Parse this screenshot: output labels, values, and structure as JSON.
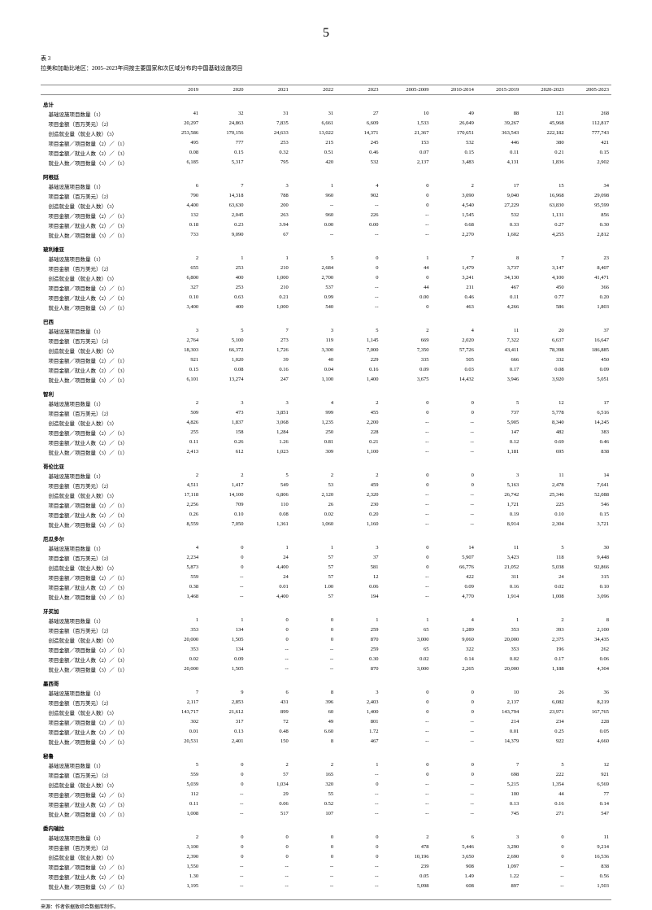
{
  "page_number": "5",
  "table_label": "表 3",
  "table_title": "拉美和加勒比地区：2005–2023年间按主要国家和次区域分布的中国基础设施项目",
  "columns": [
    "",
    "2019",
    "2020",
    "2021",
    "2022",
    "2023",
    "2005-2009",
    "2010-2014",
    "2015-2019",
    "2020-2023",
    "2005-2023"
  ],
  "sections": [
    {
      "name": "总计",
      "rows": [
        {
          "label": "基础设施项目数量（1）",
          "v": [
            "41",
            "32",
            "31",
            "31",
            "27",
            "10",
            "49",
            "88",
            "121",
            "268"
          ]
        },
        {
          "label": "项目金额（百万美元）（2）",
          "v": [
            "20,297",
            "24,863",
            "7,835",
            "6,661",
            "6,609",
            "1,533",
            "26,049",
            "39,267",
            "45,968",
            "112,817"
          ]
        },
        {
          "label": "创造就业量（就业人数）（3）",
          "v": [
            "253,586",
            "170,156",
            "24,633",
            "13,022",
            "14,371",
            "21,367",
            "170,651",
            "363,543",
            "222,182",
            "777,743"
          ]
        },
        {
          "label": "项目金额／项目数量（2）／（1）",
          "v": [
            "495",
            "777",
            "253",
            "215",
            "245",
            "153",
            "532",
            "446",
            "380",
            "421"
          ]
        },
        {
          "label": "项目金额／就业人数（2）／（3）",
          "v": [
            "0.08",
            "0.15",
            "0.32",
            "0.51",
            "0.46",
            "0.07",
            "0.15",
            "0.11",
            "0.21",
            "0.15"
          ]
        },
        {
          "label": "就业人数／项目数量（3）／（1）",
          "v": [
            "6,185",
            "5,317",
            "795",
            "420",
            "532",
            "2,137",
            "3,483",
            "4,131",
            "1,836",
            "2,902"
          ]
        }
      ]
    },
    {
      "name": "阿根廷",
      "rows": [
        {
          "label": "基础设施项目数量（1）",
          "v": [
            "6",
            "7",
            "3",
            "1",
            "4",
            "0",
            "2",
            "17",
            "15",
            "34"
          ]
        },
        {
          "label": "项目金额（百万美元）（2）",
          "v": [
            "790",
            "14,318",
            "788",
            "960",
            "902",
            "0",
            "3,090",
            "9,040",
            "16,968",
            "29,098"
          ]
        },
        {
          "label": "创造就业量（就业人数）（3）",
          "v": [
            "4,400",
            "63,630",
            "200",
            "--",
            "--",
            "0",
            "4,540",
            "27,229",
            "63,830",
            "95,599"
          ]
        },
        {
          "label": "项目金额／项目数量（2）／（1）",
          "v": [
            "132",
            "2,045",
            "263",
            "960",
            "226",
            "--",
            "1,545",
            "532",
            "1,131",
            "856"
          ]
        },
        {
          "label": "项目金额／就业人数（2）／（3）",
          "v": [
            "0.18",
            "0.23",
            "3.94",
            "0.00",
            "0.00",
            "--",
            "0.68",
            "0.33",
            "0.27",
            "0.30"
          ]
        },
        {
          "label": "就业人数／项目数量（3）／（1）",
          "v": [
            "733",
            "9,090",
            "67",
            "--",
            "--",
            "--",
            "2,270",
            "1,602",
            "4,255",
            "2,812"
          ]
        }
      ]
    },
    {
      "name": "玻利维亚",
      "rows": [
        {
          "label": "基础设施项目数量（1）",
          "v": [
            "2",
            "1",
            "1",
            "5",
            "0",
            "1",
            "7",
            "8",
            "7",
            "23"
          ]
        },
        {
          "label": "项目金额（百万美元）（2）",
          "v": [
            "655",
            "253",
            "210",
            "2,684",
            "0",
            "44",
            "1,479",
            "3,737",
            "3,147",
            "8,407"
          ]
        },
        {
          "label": "创造就业量（就业人数）（3）",
          "v": [
            "6,800",
            "400",
            "1,000",
            "2,700",
            "0",
            "0",
            "3,241",
            "34,130",
            "4,100",
            "41,471"
          ]
        },
        {
          "label": "项目金额／项目数量（2）／（1）",
          "v": [
            "327",
            "253",
            "210",
            "537",
            "--",
            "44",
            "211",
            "467",
            "450",
            "366"
          ]
        },
        {
          "label": "项目金额／就业人数（2）／（3）",
          "v": [
            "0.10",
            "0.63",
            "0.21",
            "0.99",
            "--",
            "0.00",
            "0.46",
            "0.11",
            "0.77",
            "0.20"
          ]
        },
        {
          "label": "就业人数／项目数量（3）／（1）",
          "v": [
            "3,400",
            "400",
            "1,000",
            "540",
            "--",
            "0",
            "463",
            "4,266",
            "586",
            "1,803"
          ]
        }
      ]
    },
    {
      "name": "巴西",
      "rows": [
        {
          "label": "基础设施项目数量（1）",
          "v": [
            "3",
            "5",
            "7",
            "3",
            "5",
            "2",
            "4",
            "11",
            "20",
            "37"
          ]
        },
        {
          "label": "项目金额（百万美元）（2）",
          "v": [
            "2,764",
            "5,100",
            "273",
            "119",
            "1,145",
            "669",
            "2,020",
            "7,322",
            "6,637",
            "16,647"
          ]
        },
        {
          "label": "创造就业量（就业人数）（3）",
          "v": [
            "18,303",
            "66,372",
            "1,726",
            "3,300",
            "7,000",
            "7,350",
            "57,726",
            "43,411",
            "78,398",
            "186,885"
          ]
        },
        {
          "label": "项目金额／项目数量（2）／（1）",
          "v": [
            "921",
            "1,020",
            "39",
            "40",
            "229",
            "335",
            "505",
            "666",
            "332",
            "450"
          ]
        },
        {
          "label": "项目金额／就业人数（2）／（3）",
          "v": [
            "0.15",
            "0.08",
            "0.16",
            "0.04",
            "0.16",
            "0.09",
            "0.03",
            "0.17",
            "0.08",
            "0.09"
          ]
        },
        {
          "label": "就业人数／项目数量（3）／（1）",
          "v": [
            "6,101",
            "13,274",
            "247",
            "1,100",
            "1,400",
            "3,675",
            "14,432",
            "3,946",
            "3,920",
            "5,051"
          ]
        }
      ]
    },
    {
      "name": "智利",
      "rows": [
        {
          "label": "基础设施项目数量（1）",
          "v": [
            "2",
            "3",
            "3",
            "4",
            "2",
            "0",
            "0",
            "5",
            "12",
            "17"
          ]
        },
        {
          "label": "项目金额（百万美元）（2）",
          "v": [
            "509",
            "473",
            "3,851",
            "999",
            "455",
            "0",
            "0",
            "737",
            "5,778",
            "6,516"
          ]
        },
        {
          "label": "创造就业量（就业人数）（3）",
          "v": [
            "4,826",
            "1,837",
            "3,068",
            "1,235",
            "2,200",
            "--",
            "--",
            "5,905",
            "8,340",
            "14,245"
          ]
        },
        {
          "label": "项目金额／项目数量（2）／（1）",
          "v": [
            "255",
            "158",
            "1,284",
            "250",
            "228",
            "--",
            "--",
            "147",
            "482",
            "383"
          ]
        },
        {
          "label": "项目金额／就业人数（2）／（3）",
          "v": [
            "0.11",
            "0.26",
            "1.26",
            "0.81",
            "0.21",
            "--",
            "--",
            "0.12",
            "0.69",
            "0.46"
          ]
        },
        {
          "label": "就业人数／项目数量（3）／（1）",
          "v": [
            "2,413",
            "612",
            "1,023",
            "309",
            "1,100",
            "--",
            "--",
            "1,181",
            "695",
            "838"
          ]
        }
      ]
    },
    {
      "name": "哥伦比亚",
      "rows": [
        {
          "label": "基础设施项目数量（1）",
          "v": [
            "2",
            "2",
            "5",
            "2",
            "2",
            "0",
            "0",
            "3",
            "11",
            "14"
          ]
        },
        {
          "label": "项目金额（百万美元）（2）",
          "v": [
            "4,511",
            "1,417",
            "549",
            "53",
            "459",
            "0",
            "0",
            "5,163",
            "2,478",
            "7,641"
          ]
        },
        {
          "label": "创造就业量（就业人数）（3）",
          "v": [
            "17,118",
            "14,100",
            "6,806",
            "2,120",
            "2,320",
            "--",
            "--",
            "26,742",
            "25,346",
            "52,088"
          ]
        },
        {
          "label": "项目金额／项目数量（2）／（1）",
          "v": [
            "2,256",
            "709",
            "110",
            "26",
            "230",
            "--",
            "--",
            "1,721",
            "225",
            "546"
          ]
        },
        {
          "label": "项目金额／就业人数（2）／（3）",
          "v": [
            "0.26",
            "0.10",
            "0.08",
            "0.02",
            "0.20",
            "--",
            "--",
            "0.19",
            "0.10",
            "0.15"
          ]
        },
        {
          "label": "就业人数／项目数量（3）／（1）",
          "v": [
            "8,559",
            "7,050",
            "1,361",
            "1,060",
            "1,160",
            "--",
            "--",
            "8,914",
            "2,304",
            "3,721"
          ]
        }
      ]
    },
    {
      "name": "厄瓜多尔",
      "rows": [
        {
          "label": "基础设施项目数量（1）",
          "v": [
            "4",
            "0",
            "1",
            "1",
            "3",
            "0",
            "14",
            "11",
            "5",
            "30"
          ]
        },
        {
          "label": "项目金额（百万美元）（2）",
          "v": [
            "2,234",
            "0",
            "24",
            "57",
            "37",
            "0",
            "5,907",
            "3,423",
            "118",
            "9,448"
          ]
        },
        {
          "label": "创造就业量（就业人数）（3）",
          "v": [
            "5,873",
            "0",
            "4,400",
            "57",
            "581",
            "0",
            "66,776",
            "21,052",
            "5,038",
            "92,866"
          ]
        },
        {
          "label": "项目金额／项目数量（2）／（1）",
          "v": [
            "559",
            "--",
            "24",
            "57",
            "12",
            "--",
            "422",
            "311",
            "24",
            "315"
          ]
        },
        {
          "label": "项目金额／就业人数（2）／（3）",
          "v": [
            "0.38",
            "--",
            "0.01",
            "1.00",
            "0.06",
            "--",
            "0.09",
            "0.16",
            "0.02",
            "0.10"
          ]
        },
        {
          "label": "就业人数／项目数量（3）／（1）",
          "v": [
            "1,468",
            "--",
            "4,400",
            "57",
            "194",
            "--",
            "4,770",
            "1,914",
            "1,008",
            "3,096"
          ]
        }
      ]
    },
    {
      "name": "牙买加",
      "rows": [
        {
          "label": "基础设施项目数量（1）",
          "v": [
            "1",
            "1",
            "0",
            "0",
            "1",
            "1",
            "4",
            "1",
            "2",
            "8"
          ]
        },
        {
          "label": "项目金额（百万美元）（2）",
          "v": [
            "353",
            "134",
            "0",
            "0",
            "259",
            "65",
            "1,289",
            "353",
            "393",
            "2,100"
          ]
        },
        {
          "label": "创造就业量（就业人数）（3）",
          "v": [
            "20,000",
            "1,505",
            "0",
            "0",
            "870",
            "3,000",
            "9,060",
            "20,000",
            "2,375",
            "34,435"
          ]
        },
        {
          "label": "项目金额／项目数量（2）／（1）",
          "v": [
            "353",
            "134",
            "--",
            "--",
            "259",
            "65",
            "322",
            "353",
            "196",
            "262"
          ]
        },
        {
          "label": "项目金额／就业人数（2）／（3）",
          "v": [
            "0.02",
            "0.09",
            "--",
            "--",
            "0.30",
            "0.02",
            "0.14",
            "0.02",
            "0.17",
            "0.06"
          ]
        },
        {
          "label": "就业人数／项目数量（3）／（1）",
          "v": [
            "20,000",
            "1,505",
            "--",
            "--",
            "870",
            "3,000",
            "2,265",
            "20,000",
            "1,188",
            "4,304"
          ]
        }
      ]
    },
    {
      "name": "墨西哥",
      "rows": [
        {
          "label": "基础设施项目数量（1）",
          "v": [
            "7",
            "9",
            "6",
            "8",
            "3",
            "0",
            "0",
            "10",
            "26",
            "36"
          ]
        },
        {
          "label": "项目金额（百万美元）（2）",
          "v": [
            "2,117",
            "2,853",
            "431",
            "396",
            "2,403",
            "0",
            "0",
            "2,137",
            "6,082",
            "8,219"
          ]
        },
        {
          "label": "创造就业量（就业人数）（3）",
          "v": [
            "143,717",
            "21,612",
            "899",
            "60",
            "1,400",
            "0",
            "0",
            "143,794",
            "23,971",
            "167,765"
          ]
        },
        {
          "label": "项目金额／项目数量（2）／（1）",
          "v": [
            "302",
            "317",
            "72",
            "49",
            "801",
            "--",
            "--",
            "214",
            "234",
            "228"
          ]
        },
        {
          "label": "项目金额／就业人数（2）／（3）",
          "v": [
            "0.01",
            "0.13",
            "0.48",
            "6.60",
            "1.72",
            "--",
            "--",
            "0.01",
            "0.25",
            "0.05"
          ]
        },
        {
          "label": "就业人数／项目数量（3）／（1）",
          "v": [
            "20,531",
            "2,401",
            "150",
            "8",
            "467",
            "--",
            "--",
            "14,379",
            "922",
            "4,660"
          ]
        }
      ]
    },
    {
      "name": "秘鲁",
      "rows": [
        {
          "label": "基础设施项目数量（1）",
          "v": [
            "5",
            "0",
            "2",
            "2",
            "1",
            "0",
            "0",
            "7",
            "5",
            "12"
          ]
        },
        {
          "label": "项目金额（百万美元）（2）",
          "v": [
            "559",
            "0",
            "57",
            "165",
            "--",
            "0",
            "0",
            "698",
            "222",
            "921"
          ]
        },
        {
          "label": "创造就业量（就业人数）（3）",
          "v": [
            "5,039",
            "0",
            "1,034",
            "320",
            "0",
            "--",
            "--",
            "5,215",
            "1,354",
            "6,569"
          ]
        },
        {
          "label": "项目金额／项目数量（2）／（1）",
          "v": [
            "112",
            "--",
            "29",
            "55",
            "--",
            "--",
            "--",
            "100",
            "44",
            "77"
          ]
        },
        {
          "label": "项目金额／就业人数（2）／（3）",
          "v": [
            "0.11",
            "--",
            "0.06",
            "0.52",
            "--",
            "--",
            "--",
            "0.13",
            "0.16",
            "0.14"
          ]
        },
        {
          "label": "就业人数／项目数量（3）／（1）",
          "v": [
            "1,008",
            "--",
            "517",
            "107",
            "--",
            "--",
            "--",
            "745",
            "271",
            "547"
          ]
        }
      ]
    },
    {
      "name": "委内瑞拉",
      "rows": [
        {
          "label": "基础设施项目数量（1）",
          "v": [
            "2",
            "0",
            "0",
            "0",
            "0",
            "2",
            "6",
            "3",
            "0",
            "11"
          ]
        },
        {
          "label": "项目金额（百万美元）（2）",
          "v": [
            "3,100",
            "0",
            "0",
            "0",
            "0",
            "478",
            "5,446",
            "3,290",
            "0",
            "9,214"
          ]
        },
        {
          "label": "创造就业量（就业人数）（3）",
          "v": [
            "2,390",
            "0",
            "0",
            "0",
            "0",
            "10,196",
            "3,650",
            "2,690",
            "0",
            "16,536"
          ]
        },
        {
          "label": "项目金额／项目数量（2）／（1）",
          "v": [
            "1,550",
            "--",
            "--",
            "--",
            "--",
            "239",
            "908",
            "1,097",
            "--",
            "838"
          ]
        },
        {
          "label": "项目金额／就业人数（2）／（3）",
          "v": [
            "1.30",
            "--",
            "--",
            "--",
            "--",
            "0.05",
            "1.49",
            "1.22",
            "--",
            "0.56"
          ]
        },
        {
          "label": "就业人数／项目数量（3）／（1）",
          "v": [
            "1,195",
            "--",
            "--",
            "--",
            "--",
            "5,098",
            "608",
            "897",
            "--",
            "1,503"
          ]
        }
      ]
    }
  ],
  "footer": "来源：作者依据敖综合数据库制作。"
}
